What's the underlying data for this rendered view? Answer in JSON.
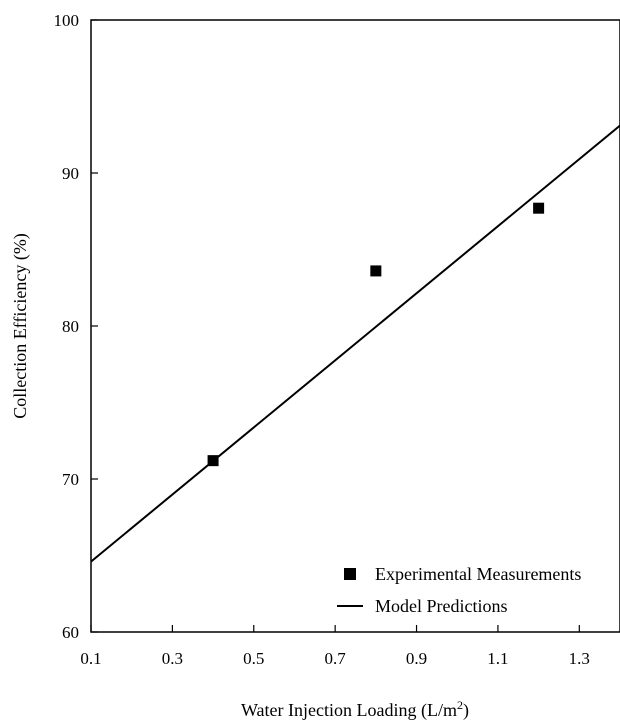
{
  "chart_data": {
    "type": "scatter",
    "xlabel": "Water Injection Loading (L/m",
    "xlabel_superscript": "2",
    "xlabel_suffix": ")",
    "ylabel": "Collection Efficiency (%)",
    "xlim": [
      0.1,
      1.4
    ],
    "ylim": [
      60,
      100
    ],
    "x_ticks": [
      "0.1",
      "0.3",
      "0.5",
      "0.7",
      "0.9",
      "1.1",
      "1.3"
    ],
    "y_ticks": [
      "60",
      "70",
      "80",
      "90",
      "100"
    ],
    "grid": false,
    "legend_position": "bottom-right",
    "series": [
      {
        "name": "Experimental Measurements",
        "kind": "markers",
        "marker": "square",
        "color": "#000000",
        "x": [
          0.4,
          0.8,
          1.2
        ],
        "y": [
          71.2,
          83.6,
          87.7
        ]
      },
      {
        "name": "Model Predictions",
        "kind": "line",
        "color": "#000000",
        "x": [
          0.1,
          1.4
        ],
        "y": [
          64.6,
          93.1
        ]
      }
    ]
  }
}
